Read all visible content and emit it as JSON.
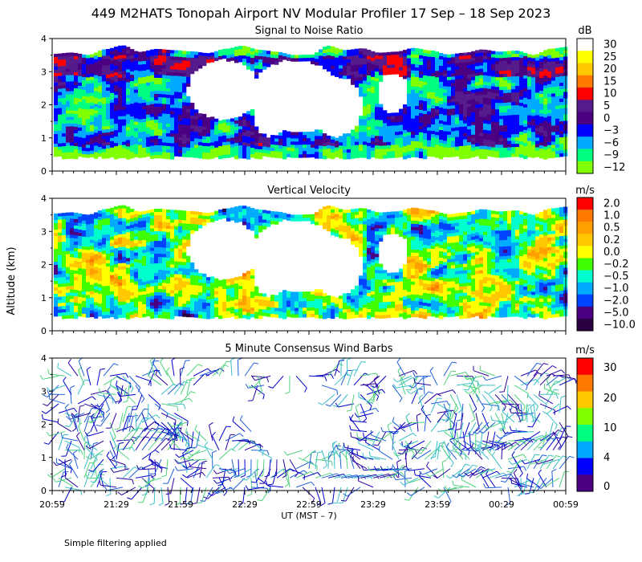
{
  "title": "449 M2HATS Tonopah Airport NV Modular Profiler 17 Sep – 18 Sep 2023",
  "ylabel": "Altitude (km)",
  "xlabel": "UT  (MST – 7)",
  "x_ticks": [
    "20:59",
    "21:29",
    "21:59",
    "22:29",
    "22:59",
    "23:29",
    "23:59",
    "00:29",
    "00:59"
  ],
  "y_ticks": [
    "0",
    "1",
    "2",
    "3",
    "4"
  ],
  "footnote": "Simple filtering applied",
  "chart_data": [
    {
      "type": "heatmap",
      "title": "Signal to Noise Ratio",
      "unit": "dB",
      "ylim": [
        0,
        4
      ],
      "x_range": [
        "20:59",
        "00:59"
      ],
      "colorbar": {
        "labels": [
          "30",
          "25",
          "20",
          "15",
          "10",
          "5",
          "0",
          "−3",
          "−6",
          "−9",
          "−12"
        ],
        "colors": [
          "#ffffff",
          "#ffff00",
          "#ffc800",
          "#ff7800",
          "#ff0000",
          "#551a8b",
          "#4b0082",
          "#0000ff",
          "#00aaff",
          "#00ff80",
          "#80ff00"
        ]
      }
    },
    {
      "type": "heatmap",
      "title": "Vertical Velocity",
      "unit": "m/s",
      "ylim": [
        0,
        4
      ],
      "x_range": [
        "20:59",
        "00:59"
      ],
      "colorbar": {
        "labels": [
          "2.0",
          "1.0",
          "0.5",
          "0.2",
          "0.0",
          "−0.2",
          "−0.5",
          "−1.0",
          "−2.0",
          "−5.0",
          "−10.0"
        ],
        "colors": [
          "#ff0000",
          "#ff7800",
          "#ffa000",
          "#ffc800",
          "#ffff00",
          "#40ff00",
          "#00ffcc",
          "#00aaff",
          "#0044ff",
          "#4b0082",
          "#2a0040"
        ]
      }
    },
    {
      "type": "scatter",
      "title": "5 Minute Consensus Wind Barbs",
      "unit": "m/s",
      "ylim": [
        0,
        4
      ],
      "x_range": [
        "20:59",
        "00:59"
      ],
      "colorbar": {
        "labels": [
          "30",
          "20",
          "10",
          "4",
          "0"
        ],
        "colors": [
          "#ff0000",
          "#ff7800",
          "#ffc800",
          "#80ff00",
          "#00ff80",
          "#00aaff",
          "#0000ff",
          "#4b0082"
        ]
      }
    }
  ]
}
